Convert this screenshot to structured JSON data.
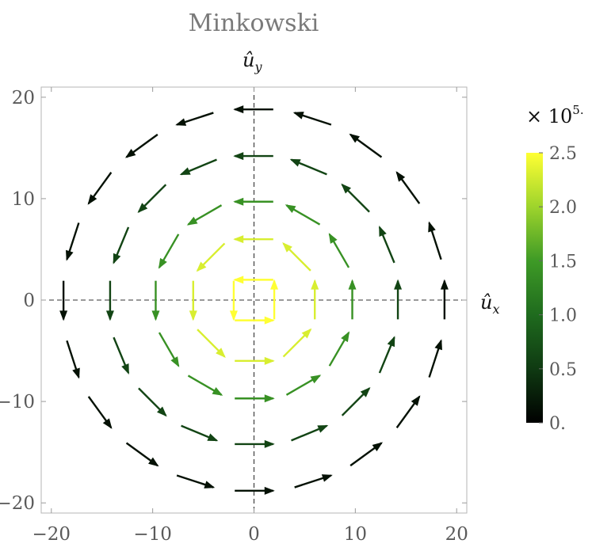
{
  "chart_data": {
    "type": "vector_field",
    "title": "Minkowski",
    "xlabel": "û",
    "xlabel_sub": "x",
    "ylabel": "û",
    "ylabel_sub": "y",
    "xlim": [
      -21,
      21
    ],
    "ylim": [
      -21,
      21
    ],
    "x_ticks": [
      -20,
      -10,
      0,
      10,
      20
    ],
    "x_tick_labels": [
      "−20",
      "−10",
      "0",
      "10",
      "20"
    ],
    "y_ticks": [
      -20,
      -10,
      0,
      10,
      20
    ],
    "y_tick_labels": [
      "−20",
      "−10",
      "0",
      "10",
      "20"
    ],
    "grid": false,
    "zero_lines": true,
    "field": {
      "rings": [
        {
          "r": 2,
          "n": 4,
          "magnitude": 2.5
        },
        {
          "r": 6,
          "n": 8,
          "magnitude": 2.3
        },
        {
          "r": 9.7,
          "n": 12,
          "magnitude": 1.4
        },
        {
          "r": 14.2,
          "n": 16,
          "magnitude": 0.6
        },
        {
          "r": 18.8,
          "n": 20,
          "magnitude": 0.15
        }
      ],
      "rotation": "counterclockwise"
    },
    "colorbar": {
      "min": 0,
      "max": 2.5,
      "ticks": [
        0,
        0.5,
        1.0,
        1.5,
        2.0,
        2.5
      ],
      "tick_labels": [
        "0.",
        "0.5",
        "1.0",
        "1.5",
        "2.0",
        "2.5"
      ],
      "multiplier_base": "× 10",
      "multiplier_exp": "5.",
      "colors": [
        "#000000",
        "#0f3a12",
        "#1f6b1e",
        "#3e9a26",
        "#9ed42c",
        "#ffff33"
      ]
    }
  }
}
